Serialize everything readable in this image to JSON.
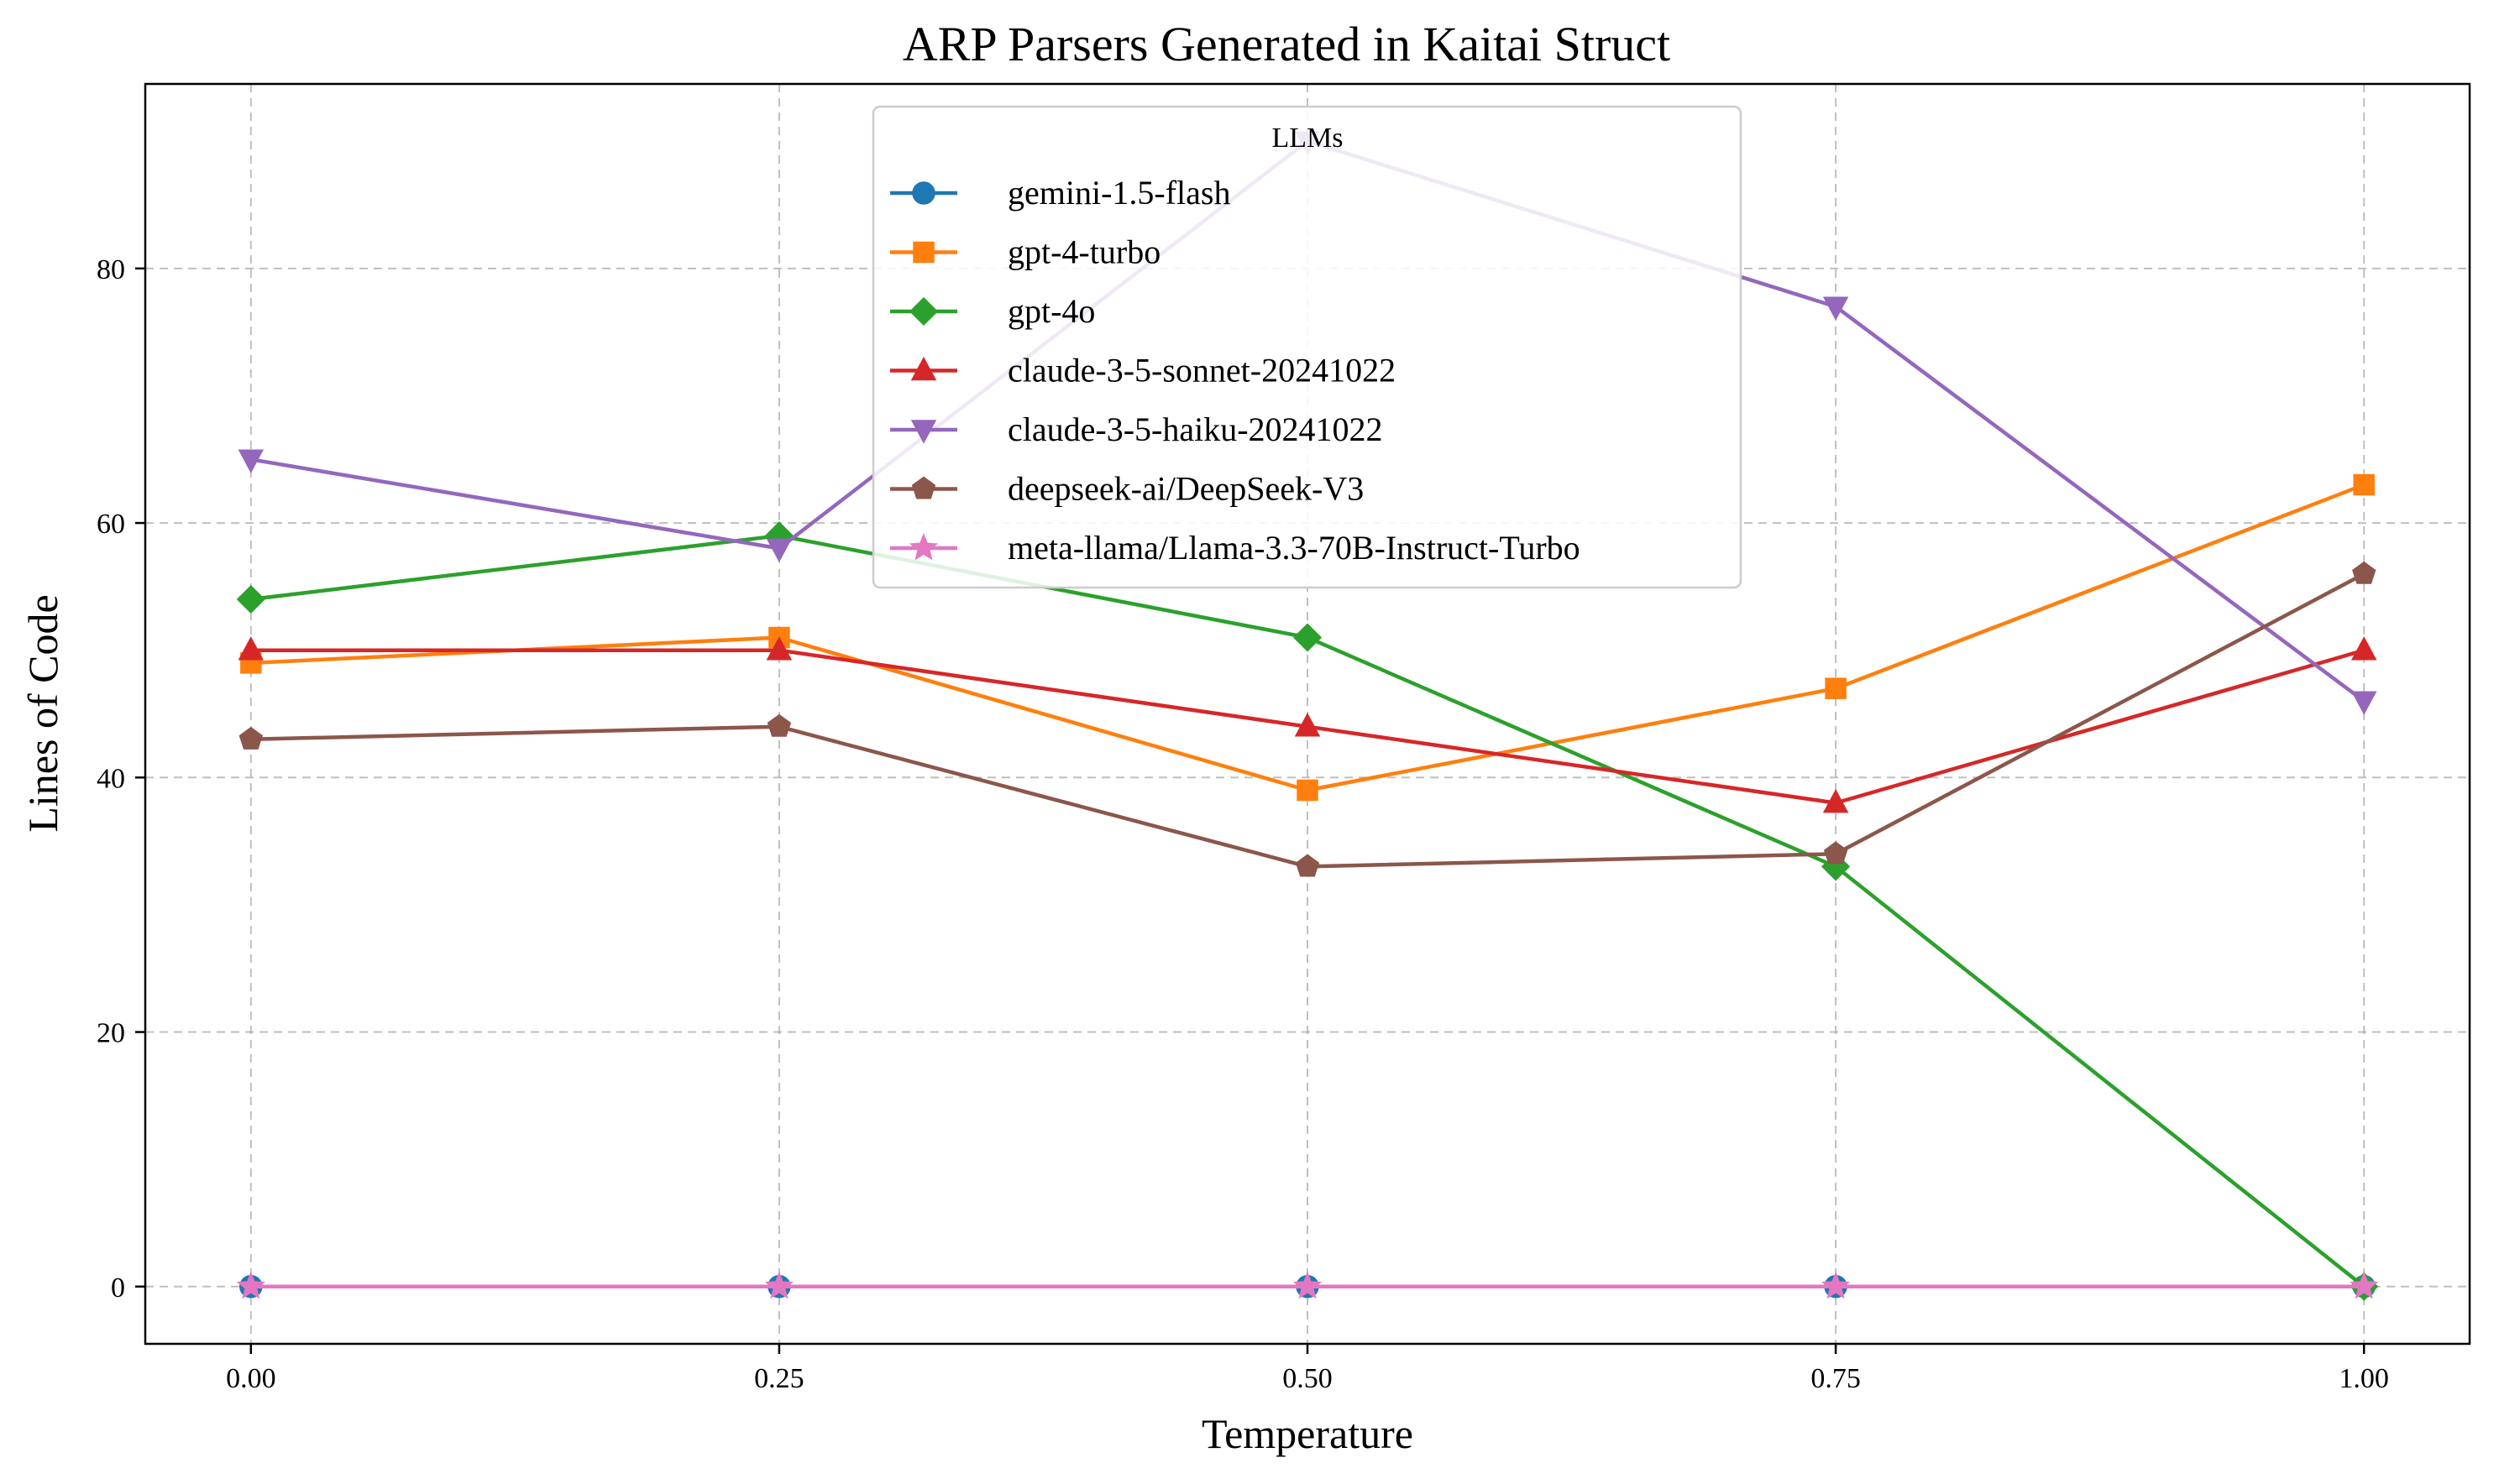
{
  "chart_data": {
    "type": "line",
    "title": "ARP Parsers Generated in Kaitai Struct",
    "xlabel": "Temperature",
    "ylabel": "Lines of Code",
    "x": [
      0.0,
      0.25,
      0.5,
      0.75,
      1.0
    ],
    "x_tick_labels": [
      "0.00",
      "0.25",
      "0.50",
      "0.75",
      "1.00"
    ],
    "y_ticks": [
      0,
      20,
      40,
      60,
      80
    ],
    "y_tick_labels": [
      "0",
      "20",
      "40",
      "60",
      "80"
    ],
    "xlim": [
      -0.05,
      1.05
    ],
    "ylim": [
      -4.5,
      94.5
    ],
    "grid": true,
    "legend": {
      "title": "LLMs",
      "placement": "top-center"
    },
    "series": [
      {
        "name": "gemini-1.5-flash",
        "color": "#1f77b4",
        "marker": "circle",
        "values": [
          0,
          0,
          0,
          0,
          0
        ]
      },
      {
        "name": "gpt-4-turbo",
        "color": "#ff7f0e",
        "marker": "square",
        "values": [
          49,
          51,
          39,
          47,
          63
        ]
      },
      {
        "name": "gpt-4o",
        "color": "#2ca02c",
        "marker": "diamond",
        "values": [
          54,
          59,
          51,
          33,
          0
        ]
      },
      {
        "name": "claude-3-5-sonnet-20241022",
        "color": "#d62728",
        "marker": "triangle-up",
        "values": [
          50,
          50,
          44,
          38,
          50
        ]
      },
      {
        "name": "claude-3-5-haiku-20241022",
        "color": "#9467bd",
        "marker": "triangle-down",
        "values": [
          65,
          58,
          90,
          77,
          46
        ]
      },
      {
        "name": "deepseek-ai/DeepSeek-V3",
        "color": "#8c564b",
        "marker": "pentagon",
        "values": [
          43,
          44,
          33,
          34,
          56
        ]
      },
      {
        "name": "meta-llama/Llama-3.3-70B-Instruct-Turbo",
        "color": "#e377c2",
        "marker": "star",
        "values": [
          0,
          0,
          0,
          0,
          0
        ]
      }
    ]
  }
}
